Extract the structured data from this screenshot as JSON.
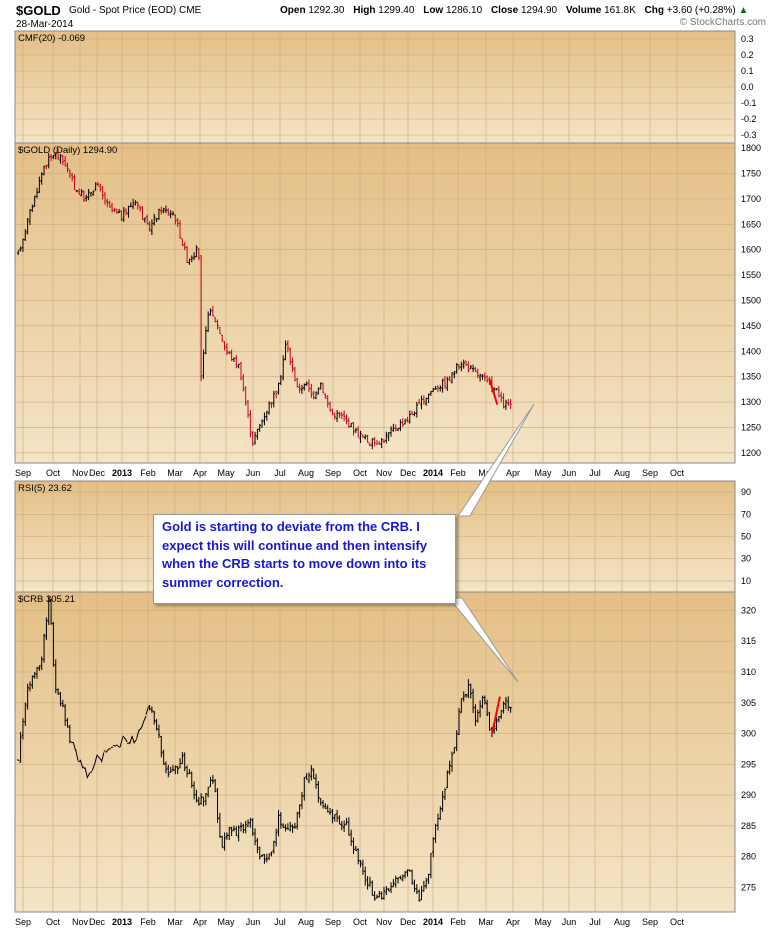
{
  "header": {
    "symbol": "$GOLD",
    "description": "Gold - Spot Price (EOD)",
    "exchange": "CME",
    "date": "28-Mar-2014",
    "open_label": "Open",
    "open": "1292.30",
    "high_label": "High",
    "high": "1299.40",
    "low_label": "Low",
    "low": "1286.10",
    "close_label": "Close",
    "close": "1294.90",
    "volume_label": "Volume",
    "volume": "161.8K",
    "chg_label": "Chg",
    "chg": "+3.60 (+0.28%)",
    "brand": "© StockCharts.com"
  },
  "annotation": "Gold is starting to deviate from the CRB. I expect this will continue and then intensify when the CRB starts to move down into its summer correction.",
  "colors": {
    "background": "#ffffff",
    "panel_top": "#e4bf86",
    "panel_bottom": "#f4e4c6",
    "grid": "#c9aa7a",
    "trend_marker": "#ff0000",
    "gold_up": "#000000",
    "gold_down": "#c8001e",
    "crb_line": "#000000"
  },
  "chart_data": [
    {
      "type": "line",
      "title": "CMF(20) -0.069",
      "ylim": [
        -0.35,
        0.35
      ],
      "yticks": [
        "0.3",
        "0.2",
        "0.1",
        "0.0",
        "-0.1",
        "-0.2",
        "-0.3"
      ],
      "grid": true
    },
    {
      "type": "line",
      "title": "$GOLD (Daily) 1294.90",
      "ylim": [
        1180,
        1810
      ],
      "yticks": [
        "1800",
        "1750",
        "1700",
        "1650",
        "1600",
        "1550",
        "1500",
        "1450",
        "1400",
        "1350",
        "1300",
        "1250",
        "1200"
      ],
      "x_labels": [
        "Sep",
        "Oct",
        "Nov",
        "Dec",
        "2013",
        "Feb",
        "Mar",
        "Apr",
        "May",
        "Jun",
        "Jul",
        "Aug",
        "Sep",
        "Oct",
        "Nov",
        "Dec",
        "2014",
        "Feb",
        "Mar",
        "Apr",
        "May",
        "Jun",
        "Jul",
        "Aug",
        "Sep",
        "Oct"
      ],
      "x": [
        0,
        0.5,
        1,
        1.4,
        1.8,
        2.2,
        2.6,
        3,
        3.5,
        4,
        4.5,
        5,
        5.5,
        6,
        6.5,
        6.9,
        7,
        7.02,
        7.3,
        7.6,
        8,
        8.5,
        9,
        9.5,
        10,
        10.3,
        10.5,
        10.8,
        11,
        11.3,
        11.6,
        12,
        12.5,
        13,
        13.5,
        14,
        14.5,
        15,
        15.5,
        16,
        16.5,
        17,
        17.5,
        18,
        18.4,
        18.6,
        18.9
      ],
      "values": [
        1590,
        1680,
        1765,
        1790,
        1770,
        1720,
        1700,
        1730,
        1680,
        1665,
        1700,
        1640,
        1680,
        1670,
        1580,
        1600,
        1570,
        1340,
        1480,
        1460,
        1400,
        1370,
        1220,
        1280,
        1330,
        1420,
        1370,
        1320,
        1340,
        1310,
        1340,
        1280,
        1270,
        1240,
        1220,
        1225,
        1250,
        1270,
        1300,
        1330,
        1340,
        1380,
        1360,
        1340,
        1320,
        1295,
        1295
      ],
      "trend_marker": {
        "x": [
          18.1,
          18.4
        ],
        "y": [
          1345,
          1295
        ]
      },
      "grid": true
    },
    {
      "type": "line",
      "title": "RSI(5) 23.62",
      "ylim": [
        0,
        100
      ],
      "yticks": [
        "90",
        "70",
        "50",
        "30",
        "10"
      ],
      "grid": true
    },
    {
      "type": "line",
      "title": "$CRB 305.21",
      "ylim": [
        271,
        323
      ],
      "yticks": [
        "320",
        "315",
        "310",
        "305",
        "300",
        "295",
        "290",
        "285",
        "280",
        "275"
      ],
      "x_labels": [
        "Sep",
        "Oct",
        "Nov",
        "Dec",
        "2013",
        "Feb",
        "Mar",
        "Apr",
        "May",
        "Jun",
        "Jul",
        "Aug",
        "Sep",
        "Oct",
        "Nov",
        "Dec",
        "2014",
        "Feb",
        "Mar",
        "Apr",
        "May",
        "Jun",
        "Jul",
        "Aug",
        "Sep",
        "Oct"
      ],
      "x": [
        0,
        0.3,
        0.6,
        0.9,
        1.2,
        1.4,
        1.6,
        1.9,
        2.2,
        2.6,
        3,
        3.5,
        4,
        4.5,
        5,
        5.3,
        5.6,
        5.9,
        6.3,
        6.6,
        6.9,
        7.2,
        7.5,
        7.8,
        8.1,
        8.5,
        8.9,
        9.3,
        9.6,
        10,
        10.4,
        10.7,
        11,
        11.3,
        11.6,
        12,
        12.3,
        12.6,
        13,
        13.4,
        13.8,
        14.2,
        14.6,
        15,
        15.4,
        15.7,
        16,
        16.3,
        16.7,
        17,
        17.3,
        17.6,
        17.9,
        18.1,
        18.4,
        18.7,
        18.9
      ],
      "values": [
        296,
        306,
        309,
        312,
        322,
        308,
        306,
        301,
        296,
        293,
        296,
        297,
        299,
        299,
        305,
        302,
        295,
        293,
        296,
        293,
        289,
        290,
        293,
        281,
        284,
        284,
        286,
        280,
        279,
        286,
        284,
        286,
        293,
        294,
        289,
        287,
        286,
        285,
        280,
        276,
        273,
        275,
        277,
        278,
        273,
        276,
        284,
        290,
        297,
        305,
        308,
        302,
        306,
        300,
        302,
        305,
        305
      ],
      "trend_marker": {
        "x": [
          18.2,
          18.5
        ],
        "y": [
          300,
          306
        ]
      },
      "grid": true
    }
  ]
}
